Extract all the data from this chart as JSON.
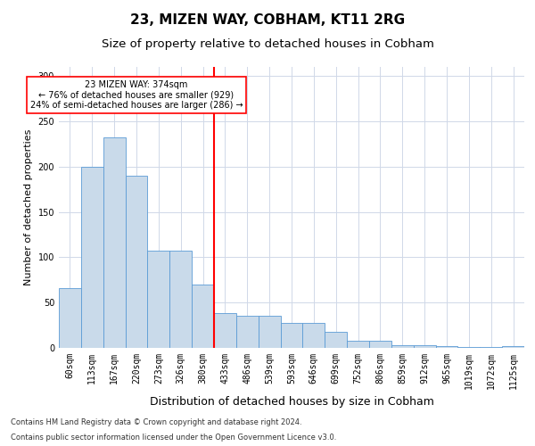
{
  "title": "23, MIZEN WAY, COBHAM, KT11 2RG",
  "subtitle": "Size of property relative to detached houses in Cobham",
  "xlabel": "Distribution of detached houses by size in Cobham",
  "ylabel": "Number of detached properties",
  "categories": [
    "60sqm",
    "113sqm",
    "167sqm",
    "220sqm",
    "273sqm",
    "326sqm",
    "380sqm",
    "433sqm",
    "486sqm",
    "539sqm",
    "593sqm",
    "646sqm",
    "699sqm",
    "752sqm",
    "806sqm",
    "859sqm",
    "912sqm",
    "965sqm",
    "1019sqm",
    "1072sqm",
    "1125sqm"
  ],
  "values": [
    66,
    200,
    232,
    190,
    107,
    107,
    70,
    38,
    35,
    35,
    28,
    28,
    18,
    8,
    8,
    3,
    3,
    2,
    1,
    1,
    2
  ],
  "bar_color": "#c9daea",
  "bar_edge_color": "#5b9bd5",
  "annotation_text_lines": [
    "23 MIZEN WAY: 374sqm",
    "← 76% of detached houses are smaller (929)",
    "24% of semi-detached houses are larger (286) →"
  ],
  "box_color": "red",
  "grid_color": "#d0d8e8",
  "footnote1": "Contains HM Land Registry data © Crown copyright and database right 2024.",
  "footnote2": "Contains public sector information licensed under the Open Government Licence v3.0.",
  "ylim": [
    0,
    310
  ],
  "red_line_x": 6.5,
  "title_fontsize": 11,
  "subtitle_fontsize": 9.5,
  "xlabel_fontsize": 9,
  "ylabel_fontsize": 8,
  "tick_fontsize": 7,
  "annot_fontsize": 7
}
